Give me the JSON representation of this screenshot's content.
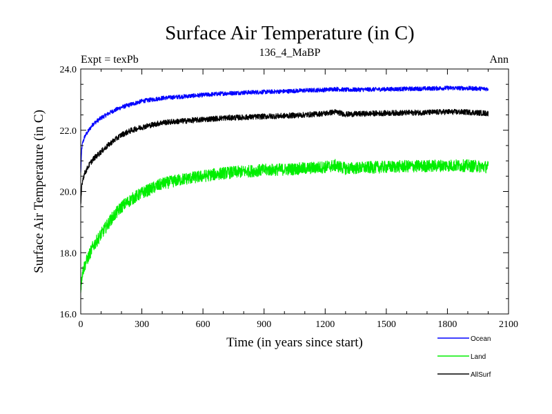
{
  "chart_data": {
    "type": "line",
    "title": "Surface Air Temperature (in C)",
    "subtitle": "136_4_MaBP",
    "left_label": "Expt = texPb",
    "right_label": "Ann",
    "xlabel": "Time (in years since start)",
    "ylabel": "Surface Air Temperature (in C)",
    "xlim": [
      0,
      2100
    ],
    "ylim": [
      16.0,
      24.0
    ],
    "x_ticks": [
      0,
      300,
      600,
      900,
      1200,
      1500,
      1800,
      2100
    ],
    "x_tick_labels": [
      "0",
      "300",
      "600",
      "900",
      "1200",
      "1500",
      "1800",
      "2100"
    ],
    "y_ticks": [
      16.0,
      18.0,
      20.0,
      22.0,
      24.0
    ],
    "y_tick_labels": [
      "16.0",
      "18.0",
      "20.0",
      "22.0",
      "24.0"
    ],
    "x_minor_step": 100,
    "y_minor_step": 0.5,
    "grid": false,
    "legend_position": "bottom-right, below plot",
    "series": [
      {
        "name": "Ocean",
        "color": "#0000ff",
        "noise": 0.07,
        "x": [
          0,
          5,
          10,
          20,
          40,
          60,
          100,
          150,
          200,
          250,
          300,
          400,
          500,
          600,
          700,
          800,
          900,
          1000,
          1100,
          1200,
          1250,
          1300,
          1400,
          1500,
          1600,
          1700,
          1800,
          1900,
          2000
        ],
        "values": [
          20.6,
          21.4,
          21.6,
          21.8,
          22.0,
          22.2,
          22.4,
          22.6,
          22.75,
          22.85,
          22.95,
          23.05,
          23.1,
          23.15,
          23.2,
          23.23,
          23.25,
          23.27,
          23.3,
          23.32,
          23.35,
          23.32,
          23.33,
          23.34,
          23.35,
          23.36,
          23.38,
          23.37,
          23.35
        ]
      },
      {
        "name": "Land",
        "color": "#00ee00",
        "noise": 0.2,
        "x": [
          0,
          5,
          10,
          20,
          40,
          60,
          100,
          150,
          200,
          250,
          300,
          400,
          500,
          600,
          700,
          800,
          900,
          1000,
          1100,
          1200,
          1250,
          1300,
          1400,
          1500,
          1600,
          1700,
          1800,
          1900,
          2000
        ],
        "values": [
          16.8,
          17.2,
          17.4,
          17.6,
          17.9,
          18.2,
          18.6,
          19.1,
          19.5,
          19.75,
          19.95,
          20.25,
          20.4,
          20.5,
          20.6,
          20.65,
          20.7,
          20.72,
          20.75,
          20.8,
          20.85,
          20.75,
          20.78,
          20.8,
          20.82,
          20.83,
          20.85,
          20.84,
          20.8
        ]
      },
      {
        "name": "AllSurf",
        "color": "#000000",
        "noise": 0.09,
        "x": [
          0,
          5,
          10,
          20,
          40,
          60,
          100,
          150,
          200,
          250,
          300,
          400,
          500,
          600,
          700,
          800,
          900,
          1000,
          1100,
          1200,
          1250,
          1300,
          1400,
          1500,
          1600,
          1700,
          1800,
          1900,
          2000
        ],
        "values": [
          19.5,
          20.2,
          20.4,
          20.6,
          20.85,
          21.05,
          21.3,
          21.6,
          21.85,
          22.0,
          22.1,
          22.25,
          22.3,
          22.35,
          22.4,
          22.42,
          22.45,
          22.47,
          22.5,
          22.55,
          22.6,
          22.52,
          22.54,
          22.56,
          22.57,
          22.58,
          22.6,
          22.59,
          22.55
        ]
      }
    ]
  }
}
